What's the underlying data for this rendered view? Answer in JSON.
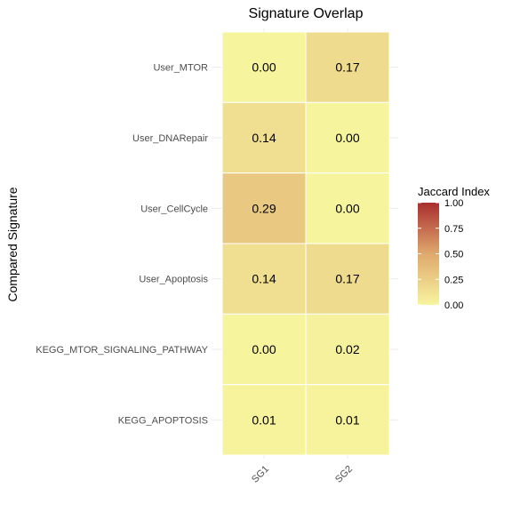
{
  "chart_data": {
    "type": "heatmap",
    "title": "Signature Overlap",
    "xlabel": "",
    "ylabel": "Compared Signature",
    "x_categories": [
      "SG1",
      "SG2"
    ],
    "y_categories": [
      "User_MTOR",
      "User_DNARepair",
      "User_CellCycle",
      "User_Apoptosis",
      "KEGG_MTOR_SIGNALING_PATHWAY",
      "KEGG_APOPTOSIS"
    ],
    "values": [
      [
        0.0,
        0.17
      ],
      [
        0.14,
        0.0
      ],
      [
        0.29,
        0.0
      ],
      [
        0.14,
        0.17
      ],
      [
        0.0,
        0.02
      ],
      [
        0.01,
        0.01
      ]
    ],
    "value_labels": [
      [
        "0.00",
        "0.17"
      ],
      [
        "0.14",
        "0.00"
      ],
      [
        "0.29",
        "0.00"
      ],
      [
        "0.14",
        "0.17"
      ],
      [
        "0.00",
        "0.02"
      ],
      [
        "0.01",
        "0.01"
      ]
    ],
    "legend": {
      "title": "Jaccard Index",
      "ticks": [
        "1.00",
        "0.75",
        "0.50",
        "0.25",
        "0.00"
      ],
      "tick_values": [
        1.0,
        0.75,
        0.5,
        0.25,
        0.0
      ],
      "range": [
        0,
        1
      ],
      "position": "right"
    },
    "color_scale": {
      "low": "#f7f49e",
      "mid": "#dfa96e",
      "high": "#a92e2e"
    },
    "grid": true
  }
}
